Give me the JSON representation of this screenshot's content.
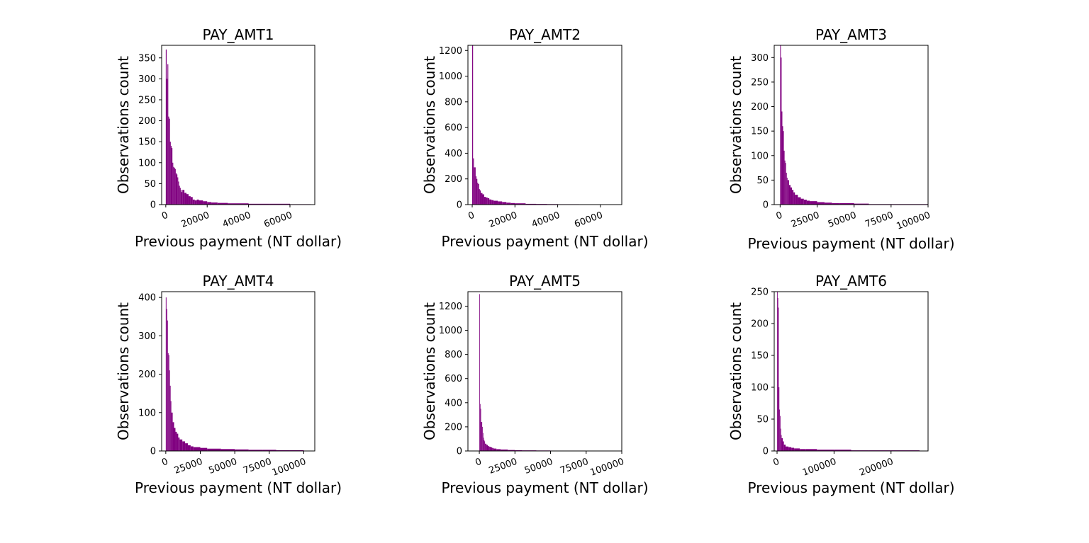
{
  "chart_data": [
    {
      "type": "bar",
      "title": "PAY_AMT1",
      "xlabel": "Previous payment (NT dollar)",
      "ylabel": "Observations count",
      "color": "#800080",
      "xlim": [
        -2000,
        72000
      ],
      "ylim": [
        0,
        380
      ],
      "xticks": [
        0,
        20000,
        40000,
        60000
      ],
      "xtick_labels": [
        "0",
        "20000",
        "40000",
        "60000"
      ],
      "yticks": [
        0,
        50,
        100,
        150,
        200,
        250,
        300,
        350
      ],
      "ytick_labels": [
        "0",
        "50",
        "100",
        "150",
        "200",
        "250",
        "300",
        "350"
      ],
      "grid": false,
      "bin_edges": [
        0,
        400,
        800,
        1200,
        1600,
        2000,
        2400,
        2800,
        3200,
        3600,
        4000,
        4400,
        4800,
        5200,
        5600,
        6000,
        6400,
        6800,
        7200,
        7600,
        8000,
        9000,
        10000,
        11000,
        12000,
        13000,
        14000,
        15000,
        16000,
        18000,
        20000,
        22000,
        25000,
        30000,
        35000,
        40000,
        50000,
        60000,
        70000
      ],
      "counts": [
        370,
        300,
        335,
        210,
        205,
        150,
        140,
        135,
        100,
        90,
        88,
        85,
        75,
        72,
        65,
        55,
        45,
        40,
        35,
        30,
        35,
        28,
        25,
        20,
        18,
        12,
        10,
        12,
        10,
        8,
        6,
        5,
        4,
        3,
        3,
        2,
        2,
        1
      ]
    },
    {
      "type": "bar",
      "title": "PAY_AMT2",
      "xlabel": "Previous payment (NT dollar)",
      "ylabel": "Observations count",
      "color": "#800080",
      "xlim": [
        -2000,
        70000
      ],
      "ylim": [
        0,
        1240
      ],
      "xticks": [
        0,
        20000,
        40000,
        60000
      ],
      "xtick_labels": [
        "0",
        "20000",
        "40000",
        "60000"
      ],
      "yticks": [
        0,
        200,
        400,
        600,
        800,
        1000,
        1200
      ],
      "ytick_labels": [
        "0",
        "200",
        "400",
        "600",
        "800",
        "1000",
        "1200"
      ],
      "grid": false,
      "bin_edges": [
        0,
        400,
        800,
        1200,
        1600,
        2000,
        2400,
        2800,
        3200,
        3600,
        4000,
        4800,
        5600,
        6400,
        7200,
        8000,
        9000,
        10000,
        12000,
        14000,
        16000,
        18000,
        20000,
        25000,
        30000,
        35000,
        40000,
        50000,
        60000,
        65000
      ],
      "counts": [
        1240,
        360,
        290,
        290,
        220,
        200,
        170,
        160,
        120,
        110,
        90,
        80,
        60,
        55,
        50,
        40,
        35,
        30,
        25,
        20,
        15,
        12,
        10,
        6,
        5,
        4,
        3,
        2,
        2
      ]
    },
    {
      "type": "bar",
      "title": "PAY_AMT3",
      "xlabel": "Previous payment (NT dollar)",
      "ylabel": "Observations count",
      "color": "#800080",
      "xlim": [
        -4000,
        100000
      ],
      "ylim": [
        0,
        325
      ],
      "xticks": [
        0,
        25000,
        50000,
        75000,
        100000
      ],
      "xtick_labels": [
        "0",
        "25000",
        "50000",
        "75000",
        "100000"
      ],
      "yticks": [
        0,
        50,
        100,
        150,
        200,
        250,
        300
      ],
      "ytick_labels": [
        "0",
        "50",
        "100",
        "150",
        "200",
        "250",
        "300"
      ],
      "grid": false,
      "bin_edges": [
        0,
        500,
        1000,
        1500,
        2000,
        2500,
        3000,
        3500,
        4000,
        4500,
        5000,
        6000,
        7000,
        8000,
        9000,
        10000,
        12000,
        14000,
        16000,
        18000,
        20000,
        25000,
        30000,
        35000,
        40000,
        50000,
        60000,
        80000,
        100000
      ],
      "counts": [
        325,
        300,
        190,
        160,
        150,
        110,
        90,
        85,
        65,
        55,
        50,
        40,
        35,
        30,
        25,
        20,
        15,
        12,
        10,
        8,
        7,
        5,
        4,
        3,
        3,
        2,
        1,
        1
      ]
    },
    {
      "type": "bar",
      "title": "PAY_AMT4",
      "xlabel": "Previous payment (NT dollar)",
      "ylabel": "Observations count",
      "color": "#800080",
      "xlim": [
        -3000,
        108000
      ],
      "ylim": [
        0,
        415
      ],
      "xticks": [
        0,
        25000,
        50000,
        75000,
        100000
      ],
      "xtick_labels": [
        "0",
        "25000",
        "50000",
        "75000",
        "100000"
      ],
      "yticks": [
        0,
        100,
        200,
        300,
        400
      ],
      "ytick_labels": [
        "0",
        "100",
        "200",
        "300",
        "400"
      ],
      "grid": false,
      "bin_edges": [
        0,
        500,
        1000,
        1500,
        2000,
        2500,
        3000,
        3500,
        4000,
        5000,
        6000,
        7000,
        8000,
        9000,
        10000,
        12000,
        14000,
        16000,
        18000,
        20000,
        25000,
        30000,
        40000,
        50000,
        60000,
        70000,
        80000,
        90000,
        100000
      ],
      "counts": [
        400,
        370,
        340,
        255,
        250,
        210,
        170,
        130,
        100,
        75,
        60,
        50,
        45,
        35,
        30,
        25,
        20,
        15,
        12,
        10,
        8,
        6,
        5,
        4,
        3,
        3,
        2,
        2
      ]
    },
    {
      "type": "bar",
      "title": "PAY_AMT5",
      "xlabel": "Previous payment (NT dollar)",
      "ylabel": "Observations count",
      "color": "#800080",
      "xlim": [
        -8000,
        100000
      ],
      "ylim": [
        0,
        1320
      ],
      "xticks": [
        0,
        25000,
        50000,
        75000,
        100000
      ],
      "xtick_labels": [
        "0",
        "25000",
        "50000",
        "75000",
        "100000"
      ],
      "yticks": [
        0,
        200,
        400,
        600,
        800,
        1000,
        1200
      ],
      "ytick_labels": [
        "0",
        "200",
        "400",
        "600",
        "800",
        "1000",
        "1200"
      ],
      "grid": false,
      "bin_edges": [
        0,
        400,
        800,
        1200,
        1600,
        2000,
        2400,
        2800,
        3200,
        3600,
        4000,
        5000,
        6000,
        7000,
        8000,
        9000,
        10000,
        12000,
        15000,
        20000,
        25000,
        30000,
        40000,
        50000,
        60000,
        75000,
        90000,
        100000
      ],
      "counts": [
        1300,
        390,
        350,
        240,
        240,
        200,
        150,
        110,
        90,
        80,
        60,
        50,
        40,
        35,
        30,
        25,
        20,
        15,
        12,
        8,
        6,
        5,
        4,
        3,
        3,
        2,
        2
      ]
    },
    {
      "type": "bar",
      "title": "PAY_AMT6",
      "xlabel": "Previous payment (NT dollar)",
      "ylabel": "Observations count",
      "color": "#800080",
      "xlim": [
        -5000,
        265000
      ],
      "ylim": [
        0,
        250
      ],
      "xticks": [
        0,
        100000,
        200000
      ],
      "xtick_labels": [
        "0",
        "100000",
        "200000"
      ],
      "yticks": [
        0,
        50,
        100,
        150,
        200,
        250
      ],
      "ytick_labels": [
        "0",
        "50",
        "100",
        "150",
        "200",
        "250"
      ],
      "grid": false,
      "bin_edges": [
        0,
        1000,
        2000,
        3000,
        4000,
        5000,
        6000,
        7000,
        8000,
        10000,
        12000,
        15000,
        20000,
        25000,
        30000,
        40000,
        50000,
        70000,
        100000,
        130000,
        160000,
        200000,
        250000
      ],
      "counts": [
        250,
        240,
        225,
        100,
        65,
        55,
        35,
        25,
        20,
        15,
        10,
        7,
        6,
        5,
        4,
        3,
        3,
        2,
        2,
        1,
        1,
        1
      ]
    }
  ]
}
